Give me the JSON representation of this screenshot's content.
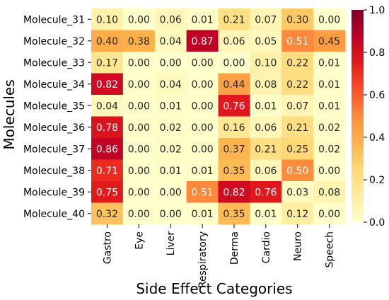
{
  "chart_data": {
    "type": "heatmap",
    "title": "",
    "xlabel": "Side Effect Categories",
    "ylabel": "Molecules",
    "x_categories": [
      "Gastro",
      "Eye",
      "Liver",
      "Respiratory",
      "Derma",
      "Cardio",
      "Neuro",
      "Speech"
    ],
    "y_categories": [
      "Molecule_31",
      "Molecule_32",
      "Molecule_33",
      "Molecule_34",
      "Molecule_35",
      "Molecule_36",
      "Molecule_37",
      "Molecule_38",
      "Molecule_39",
      "Molecule_40"
    ],
    "values": [
      [
        0.1,
        0.0,
        0.06,
        0.01,
        0.21,
        0.07,
        0.3,
        0.0
      ],
      [
        0.4,
        0.38,
        0.04,
        0.87,
        0.06,
        0.05,
        0.51,
        0.45
      ],
      [
        0.17,
        0.0,
        0.0,
        0.0,
        0.0,
        0.1,
        0.22,
        0.01
      ],
      [
        0.82,
        0.0,
        0.04,
        0.0,
        0.44,
        0.08,
        0.22,
        0.01
      ],
      [
        0.04,
        0.0,
        0.01,
        0.0,
        0.76,
        0.01,
        0.07,
        0.01
      ],
      [
        0.78,
        0.0,
        0.02,
        0.0,
        0.16,
        0.06,
        0.21,
        0.02
      ],
      [
        0.86,
        0.0,
        0.02,
        0.0,
        0.37,
        0.21,
        0.25,
        0.02
      ],
      [
        0.71,
        0.0,
        0.01,
        0.01,
        0.35,
        0.06,
        0.5,
        0.0
      ],
      [
        0.75,
        0.0,
        0.0,
        0.51,
        0.82,
        0.76,
        0.03,
        0.08
      ],
      [
        0.32,
        0.0,
        0.0,
        0.01,
        0.35,
        0.01,
        0.12,
        0.0
      ]
    ],
    "value_format": "0.00",
    "colormap": "YlOrRd",
    "colorbar": {
      "range": [
        0.0,
        1.0
      ],
      "ticks": [
        0.0,
        0.2,
        0.4,
        0.6,
        0.8,
        1.0
      ],
      "tick_labels": [
        "0.0",
        "0.2",
        "0.4",
        "0.6",
        "0.8",
        "1.0"
      ]
    },
    "grid": false,
    "legend": "colorbar-right"
  }
}
